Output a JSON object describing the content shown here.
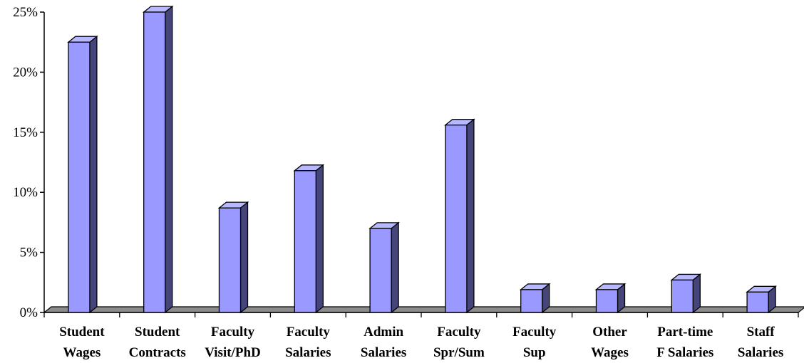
{
  "chart_data": {
    "type": "bar",
    "title": "",
    "xlabel": "",
    "ylabel": "",
    "categories": [
      [
        "Student",
        "Wages"
      ],
      [
        "Student",
        "Contracts"
      ],
      [
        "Faculty",
        "Visit/PhD"
      ],
      [
        "Faculty",
        "Salaries"
      ],
      [
        "Admin",
        "Salaries"
      ],
      [
        "Faculty",
        "Spr/Sum"
      ],
      [
        "Faculty",
        "Sup"
      ],
      [
        "Other",
        "Wages"
      ],
      [
        "Part-time",
        "F Salaries"
      ],
      [
        "Staff",
        "Salaries"
      ]
    ],
    "values": [
      22.5,
      25.0,
      8.7,
      11.8,
      7.0,
      15.6,
      1.9,
      1.9,
      2.7,
      1.7
    ],
    "ylim": [
      0,
      25
    ],
    "yticks": [
      0,
      5,
      10,
      15,
      20,
      25
    ],
    "ytick_labels": [
      "0%",
      "5%",
      "10%",
      "15%",
      "20%",
      "25%"
    ],
    "grid": false,
    "legend": "none",
    "colors": {
      "bar_front": "#9999ff",
      "bar_side": "#45457a",
      "bar_top": "#b8b8ff",
      "bar_outline": "#000000",
      "floor": "#8c8c8c"
    }
  }
}
